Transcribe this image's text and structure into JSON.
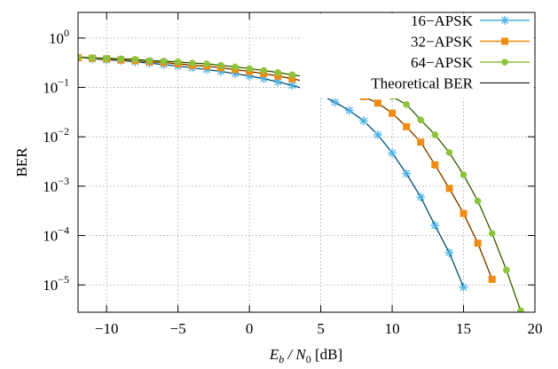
{
  "chart_data": {
    "type": "line",
    "xlabel": [
      "E",
      "b",
      " / N",
      "0",
      " [dB]"
    ],
    "ylabel": "BER",
    "log_y": true,
    "grid": true,
    "legend": "upper right",
    "xlim": [
      -12,
      20
    ],
    "ylim": [
      2.8e-06,
      3.3
    ],
    "xticks": [
      {
        "value": -10,
        "label": "−10"
      },
      {
        "value": -5,
        "label": "−5"
      },
      0,
      5,
      10,
      15,
      20
    ],
    "yticks": [
      {
        "value": 1,
        "label": "10",
        "exponent": "0"
      },
      {
        "value": 0.1,
        "label": "10",
        "exponent": "−1"
      },
      {
        "value": 0.01,
        "label": "10",
        "exponent": "−2"
      },
      {
        "value": 0.001,
        "label": "10",
        "exponent": "−3"
      },
      {
        "value": 0.0001,
        "label": "10",
        "exponent": "−4"
      },
      {
        "value": 1e-05,
        "label": "10",
        "exponent": "−5"
      }
    ],
    "series": [
      {
        "name": "16−APSK",
        "color": "#4bb2e4",
        "marker": "star",
        "x": [
          -12,
          -11,
          -10,
          -9,
          -8,
          -7,
          -6,
          -5,
          -4,
          -3,
          -2,
          -1,
          0,
          1,
          2,
          3,
          4,
          5,
          6,
          7,
          8,
          9,
          10,
          11,
          12,
          13,
          14,
          15
        ],
        "values": [
          0.4,
          0.38,
          0.36,
          0.35,
          0.33,
          0.31,
          0.29,
          0.27,
          0.25,
          0.23,
          0.21,
          0.19,
          0.17,
          0.15,
          0.13,
          0.11,
          0.09,
          0.07,
          0.05,
          0.034,
          0.021,
          0.011,
          0.0047,
          0.0018,
          0.0006,
          0.00016,
          4.5e-05,
          9e-06
        ]
      },
      {
        "name": "32−APSK",
        "color": "#f08c14",
        "marker": "square",
        "x": [
          -12,
          -11,
          -10,
          -9,
          -8,
          -7,
          -6,
          -5,
          -4,
          -3,
          -2,
          -1,
          0,
          1,
          2,
          3,
          4,
          5,
          6,
          7,
          8,
          9,
          10,
          11,
          12,
          13,
          14,
          15,
          16,
          17
        ],
        "values": [
          0.4,
          0.39,
          0.38,
          0.36,
          0.35,
          0.33,
          0.32,
          0.3,
          0.28,
          0.27,
          0.25,
          0.23,
          0.21,
          0.19,
          0.17,
          0.15,
          0.13,
          0.11,
          0.095,
          0.08,
          0.065,
          0.048,
          0.03,
          0.016,
          0.0078,
          0.0027,
          0.0009,
          0.00028,
          7e-05,
          1.3e-05
        ]
      },
      {
        "name": "64−APSK",
        "color": "#8cc43c",
        "marker": "circle",
        "x": [
          -12,
          -11,
          -10,
          -9,
          -8,
          -7,
          -6,
          -5,
          -4,
          -3,
          -2,
          -1,
          0,
          1,
          2,
          3,
          4,
          5,
          6,
          7,
          8,
          9,
          10,
          11,
          12,
          13,
          14,
          15,
          16,
          17,
          18,
          19
        ],
        "values": [
          0.41,
          0.4,
          0.39,
          0.38,
          0.37,
          0.35,
          0.34,
          0.33,
          0.31,
          0.3,
          0.28,
          0.26,
          0.24,
          0.22,
          0.2,
          0.18,
          0.165,
          0.15,
          0.13,
          0.115,
          0.1,
          0.085,
          0.065,
          0.045,
          0.022,
          0.011,
          0.0048,
          0.0017,
          0.0005,
          0.00011,
          2e-05,
          3e-06
        ]
      }
    ],
    "theory": {
      "name": "Theoretical BER",
      "color": "#000000"
    }
  }
}
